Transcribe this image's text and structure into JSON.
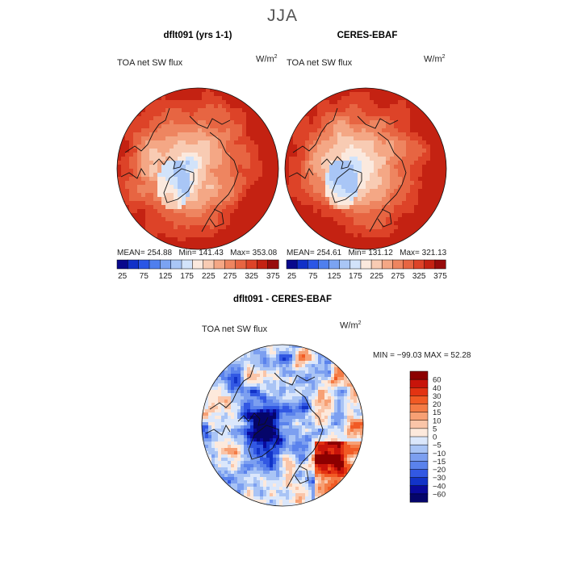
{
  "figure": {
    "season_title": "JJA"
  },
  "panels": [
    {
      "title": "dflt091 (yrs 1-1)",
      "variable": "TOA net SW flux",
      "units": "W/m",
      "units_exp": "2",
      "mean_label": "MEAN=",
      "mean": "254.88",
      "min_label": "Min=",
      "min": "141.43",
      "max_label": "Max=",
      "max": "353.08"
    },
    {
      "title": "CERES-EBAF",
      "variable": "TOA net SW flux",
      "units": "W/m",
      "units_exp": "2",
      "mean_label": "MEAN=",
      "mean": "254.61",
      "min_label": "Min=",
      "min": "131.12",
      "max_label": "Max=",
      "max": "321.13"
    },
    {
      "title": "dflt091 - CERES-EBAF",
      "variable": "TOA net SW flux",
      "units": "W/m",
      "units_exp": "2",
      "stats_text": "MIN = −99.03 MAX =  52.28"
    }
  ],
  "chart_data": [
    {
      "type": "heatmap",
      "title": "dflt091 (yrs 1-1)",
      "projection": "north-polar-stereographic",
      "colorbar": {
        "orientation": "horizontal",
        "tick_labels": [
          "25",
          "75",
          "125",
          "175",
          "225",
          "275",
          "325",
          "375"
        ],
        "colors": [
          "#08088c",
          "#1030c8",
          "#2a56e6",
          "#4f7fee",
          "#7ba3f2",
          "#a9c6f6",
          "#d2e3fa",
          "#fbe9de",
          "#f8cbb3",
          "#f4a785",
          "#ee8560",
          "#e76542",
          "#dd4328",
          "#c42212",
          "#970b0b"
        ]
      },
      "stats": {
        "mean": 254.88,
        "min": 141.43,
        "max": 353.08
      }
    },
    {
      "type": "heatmap",
      "title": "CERES-EBAF",
      "projection": "north-polar-stereographic",
      "colorbar": {
        "orientation": "horizontal",
        "tick_labels": [
          "25",
          "75",
          "125",
          "175",
          "225",
          "275",
          "325",
          "375"
        ],
        "colors": [
          "#08088c",
          "#1030c8",
          "#2a56e6",
          "#4f7fee",
          "#7ba3f2",
          "#a9c6f6",
          "#d2e3fa",
          "#fbe9de",
          "#f8cbb3",
          "#f4a785",
          "#ee8560",
          "#e76542",
          "#dd4328",
          "#c42212",
          "#970b0b"
        ]
      },
      "stats": {
        "mean": 254.61,
        "min": 131.12,
        "max": 321.13
      }
    },
    {
      "type": "heatmap",
      "title": "dflt091 - CERES-EBAF",
      "projection": "north-polar-stereographic",
      "colorbar": {
        "orientation": "vertical",
        "tick_labels": [
          "60",
          "40",
          "30",
          "20",
          "15",
          "10",
          "5",
          "0",
          "−5",
          "−10",
          "−15",
          "−20",
          "−30",
          "−40",
          "−60"
        ],
        "colors": [
          "#8c0000",
          "#c8140a",
          "#e33312",
          "#f15a24",
          "#f47b45",
          "#f7a074",
          "#fac5a8",
          "#fde9dc",
          "#dbe7fb",
          "#a9c4f5",
          "#7c9ff0",
          "#5a82ec",
          "#3258e3",
          "#1233c8",
          "#0a0a9c",
          "#05056a"
        ]
      },
      "stats": {
        "min": -99.03,
        "max": 52.28
      }
    }
  ]
}
